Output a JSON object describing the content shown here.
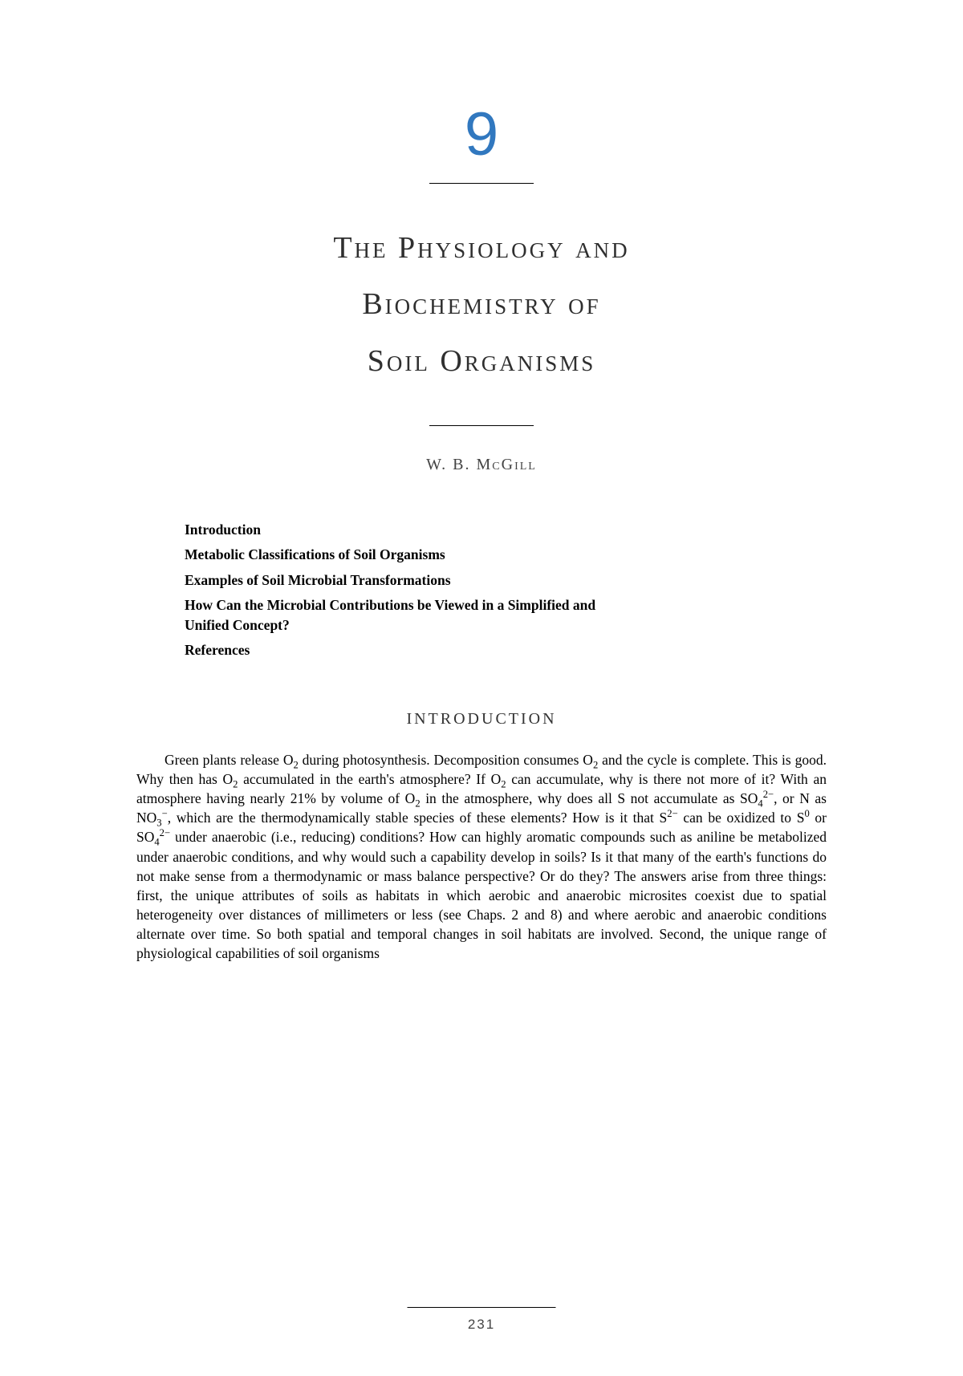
{
  "chapter": {
    "number": "9",
    "title_line1": "The Physiology and",
    "title_line2": "Biochemistry of",
    "title_line3": "Soil Organisms",
    "author": "W. B. McGill"
  },
  "toc": {
    "items": [
      "Introduction",
      "Metabolic Classifications of Soil Organisms",
      "Examples of Soil Microbial Transformations",
      "How Can the Microbial Contributions be Viewed in a Simplified and Unified Concept?",
      "References"
    ]
  },
  "section": {
    "heading": "INTRODUCTION",
    "body_html": "Green plants release O<span class=\"sub\">2</span> during photosynthesis. Decomposition consumes O<span class=\"sub\">2</span> and the cycle is complete. This is good. Why then has O<span class=\"sub\">2</span> accumulated in the earth's atmosphere? If O<span class=\"sub\">2</span> can accumulate, why is there not more of it? With an atmosphere having nearly 21% by volume of O<span class=\"sub\">2</span> in the atmosphere, why does all S not accumulate as SO<span class=\"sub\">4</span><span class=\"sup\">2−</span>, or N as NO<span class=\"sub\">3</span><span class=\"sup\">−</span>, which are the thermodynamically stable species of these elements? How is it that S<span class=\"sup\">2−</span> can be oxidized to S<span class=\"sup\">0</span> or SO<span class=\"sub\">4</span><span class=\"sup\">2−</span> under anaerobic (i.e., reducing) conditions? How can highly aromatic compounds such as aniline be metabolized under anaerobic conditions, and why would such a capability develop in soils? Is it that many of the earth's functions do not make sense from a thermodynamic or mass balance perspective? Or do they? The answers arise from three things: first, the unique attributes of soils as habitats in which aerobic and anaerobic microsites coexist due to spatial heterogeneity over distances of millimeters or less (see Chaps. 2 and 8) and where aerobic and anaerobic conditions alternate over time. So both spatial and temporal changes in soil habitats are involved. Second, the unique range of physiological capabilities of soil organisms"
  },
  "page_number": "231",
  "colors": {
    "chapter_number": "#3178bf",
    "text": "#000000",
    "bg": "#ffffff"
  },
  "typography": {
    "body_font": "Times New Roman",
    "display_font": "Optima / Trajan-like small-caps",
    "body_fontsize_pt": 12,
    "title_fontsize_pt": 26,
    "chapter_number_fontsize_pt": 54
  }
}
